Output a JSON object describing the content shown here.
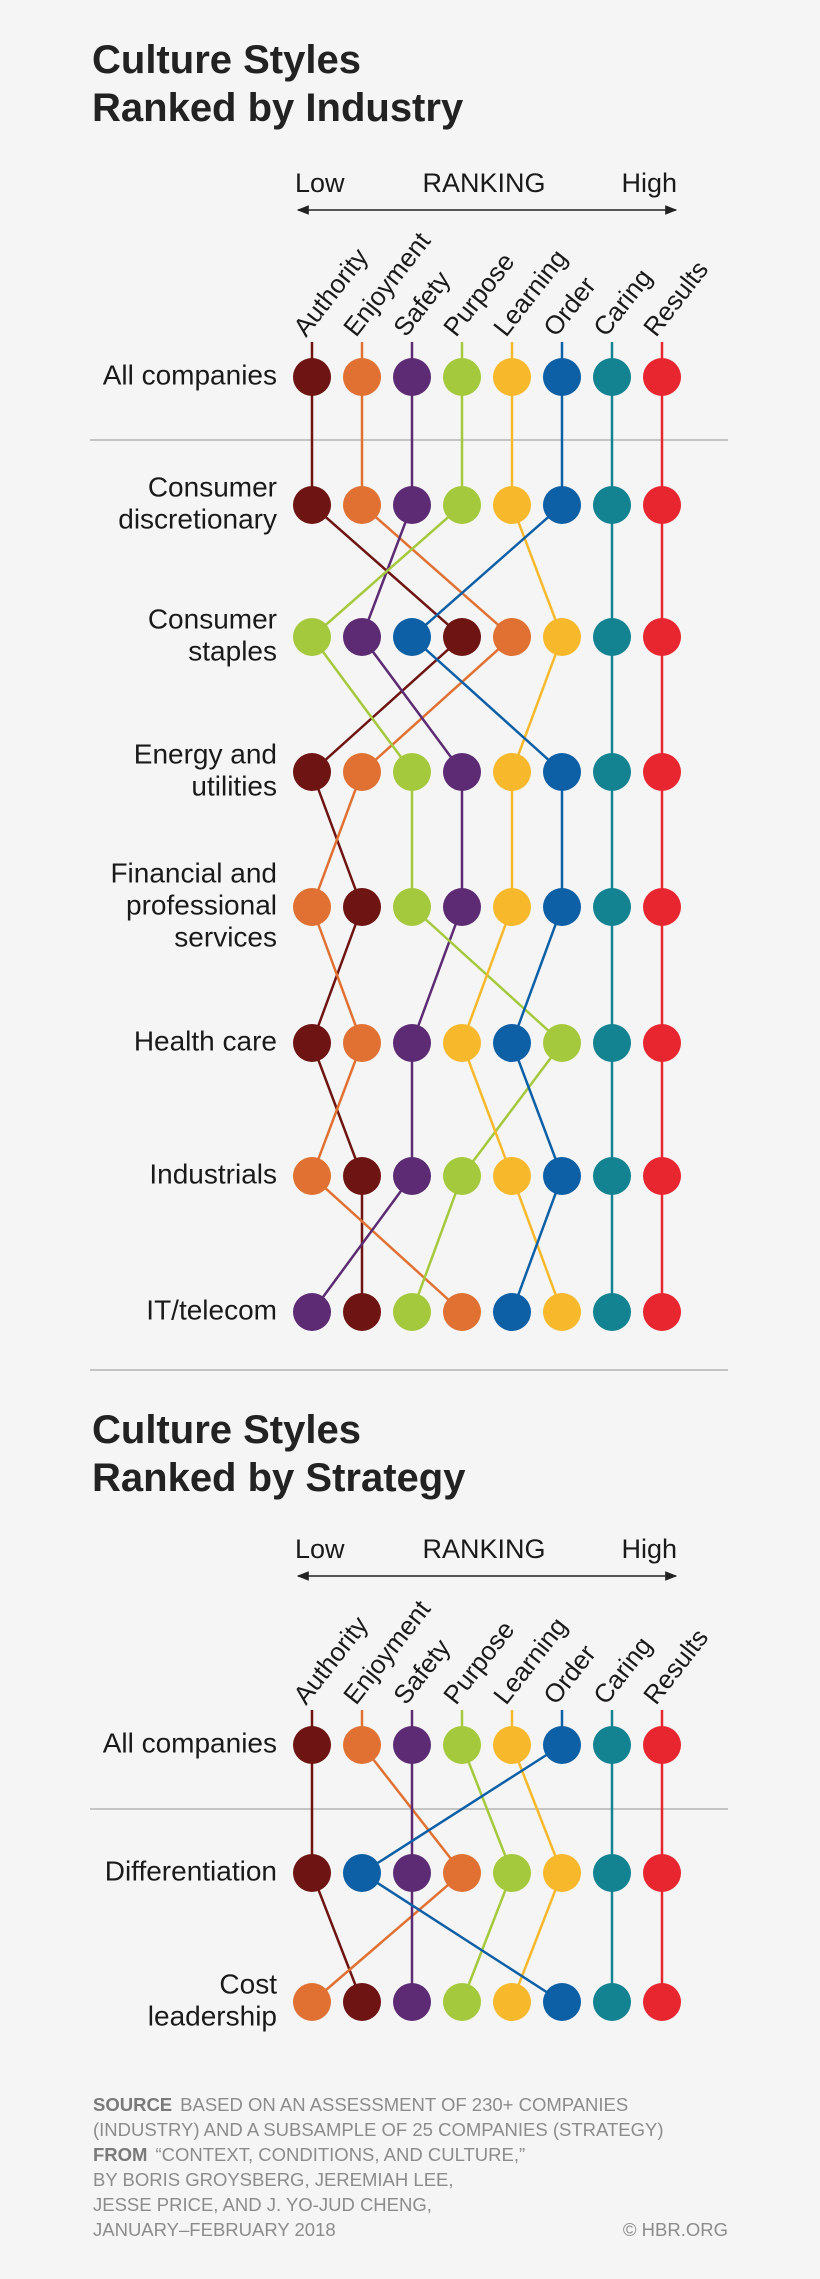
{
  "chart_data": [
    {
      "type": "bump",
      "title": "Culture Styles Ranked by Industry",
      "low_label": "Low",
      "axis_label": "RANKING",
      "high_label": "High",
      "categories": [
        [
          "All companies"
        ],
        [
          "Consumer",
          "discretionary"
        ],
        [
          "Consumer",
          "staples"
        ],
        [
          "Energy and",
          "utilities"
        ],
        [
          "Financial and",
          "professional",
          "services"
        ],
        [
          "Health care"
        ],
        [
          "Industrials"
        ],
        [
          "IT/telecom"
        ]
      ],
      "series": [
        {
          "name": "Authority",
          "color": "#6e1412",
          "values": [
            1,
            1,
            4,
            1,
            2,
            1,
            2,
            2
          ]
        },
        {
          "name": "Enjoyment",
          "color": "#e07132",
          "values": [
            2,
            2,
            5,
            2,
            1,
            2,
            1,
            4
          ]
        },
        {
          "name": "Safety",
          "color": "#5c2b73",
          "values": [
            3,
            3,
            2,
            4,
            4,
            3,
            3,
            1
          ]
        },
        {
          "name": "Purpose",
          "color": "#a5c93d",
          "values": [
            4,
            4,
            1,
            3,
            3,
            6,
            4,
            3
          ]
        },
        {
          "name": "Learning",
          "color": "#f7b92b",
          "values": [
            5,
            5,
            6,
            5,
            5,
            4,
            5,
            6
          ]
        },
        {
          "name": "Order",
          "color": "#0d5fa6",
          "values": [
            6,
            6,
            3,
            6,
            6,
            5,
            6,
            5
          ]
        },
        {
          "name": "Caring",
          "color": "#138291",
          "values": [
            7,
            7,
            7,
            7,
            7,
            7,
            7,
            7
          ]
        },
        {
          "name": "Results",
          "color": "#e8262f",
          "values": [
            8,
            8,
            8,
            8,
            8,
            8,
            8,
            8
          ]
        }
      ]
    },
    {
      "type": "bump",
      "title": "Culture Styles Ranked by Strategy",
      "low_label": "Low",
      "axis_label": "RANKING",
      "high_label": "High",
      "categories": [
        [
          "All companies"
        ],
        [
          "Differentiation"
        ],
        [
          "Cost",
          "leadership"
        ]
      ],
      "series": [
        {
          "name": "Authority",
          "color": "#6e1412",
          "values": [
            1,
            1,
            2
          ]
        },
        {
          "name": "Enjoyment",
          "color": "#e07132",
          "values": [
            2,
            4,
            1
          ]
        },
        {
          "name": "Safety",
          "color": "#5c2b73",
          "values": [
            3,
            3,
            3
          ]
        },
        {
          "name": "Purpose",
          "color": "#a5c93d",
          "values": [
            4,
            5,
            4
          ]
        },
        {
          "name": "Learning",
          "color": "#f7b92b",
          "values": [
            5,
            6,
            5
          ]
        },
        {
          "name": "Order",
          "color": "#0d5fa6",
          "values": [
            6,
            2,
            6
          ]
        },
        {
          "name": "Caring",
          "color": "#138291",
          "values": [
            7,
            7,
            7
          ]
        },
        {
          "name": "Results",
          "color": "#e8262f",
          "values": [
            8,
            8,
            8
          ]
        }
      ]
    }
  ],
  "footer": {
    "source": {
      "label": "SOURCE",
      "lines": [
        "BASED ON AN ASSESSMENT OF 230+ COMPANIES",
        "(INDUSTRY) AND A SUBSAMPLE OF 25 COMPANIES (STRATEGY)"
      ]
    },
    "from": {
      "label": "FROM",
      "lines": [
        "“CONTEXT, CONDITIONS, AND CULTURE,”",
        "BY BORIS GROYSBERG, JEREMIAH LEE,",
        "JESSE PRICE, AND J. YO-JUD CHENG,",
        "JANUARY–FEBRUARY 2018"
      ]
    },
    "credit": "© HBR.ORG"
  }
}
